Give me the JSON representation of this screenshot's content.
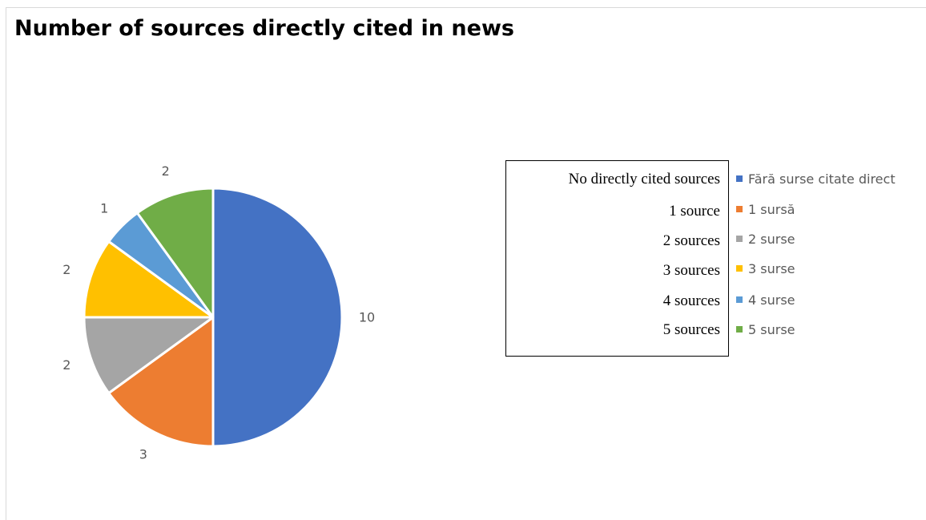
{
  "chart_data": {
    "type": "pie",
    "title": "Number of sources directly cited in news",
    "categories": [
      "Fără surse citate direct",
      "1 sursă",
      "2 surse",
      "3 surse",
      "4 surse",
      "5 surse"
    ],
    "values": [
      10,
      3,
      2,
      2,
      1,
      2
    ],
    "colors": [
      "#4472c4",
      "#ed7d31",
      "#a5a5a5",
      "#ffc000",
      "#5b9bd5",
      "#70ad47"
    ],
    "legend_position": "right",
    "data_labels": [
      "10",
      "3",
      "2",
      "2",
      "1",
      "2"
    ]
  },
  "translations": [
    "No directly cited sources",
    "1 source",
    "2 sources",
    "3 sources",
    "4 sources",
    "5 sources"
  ]
}
